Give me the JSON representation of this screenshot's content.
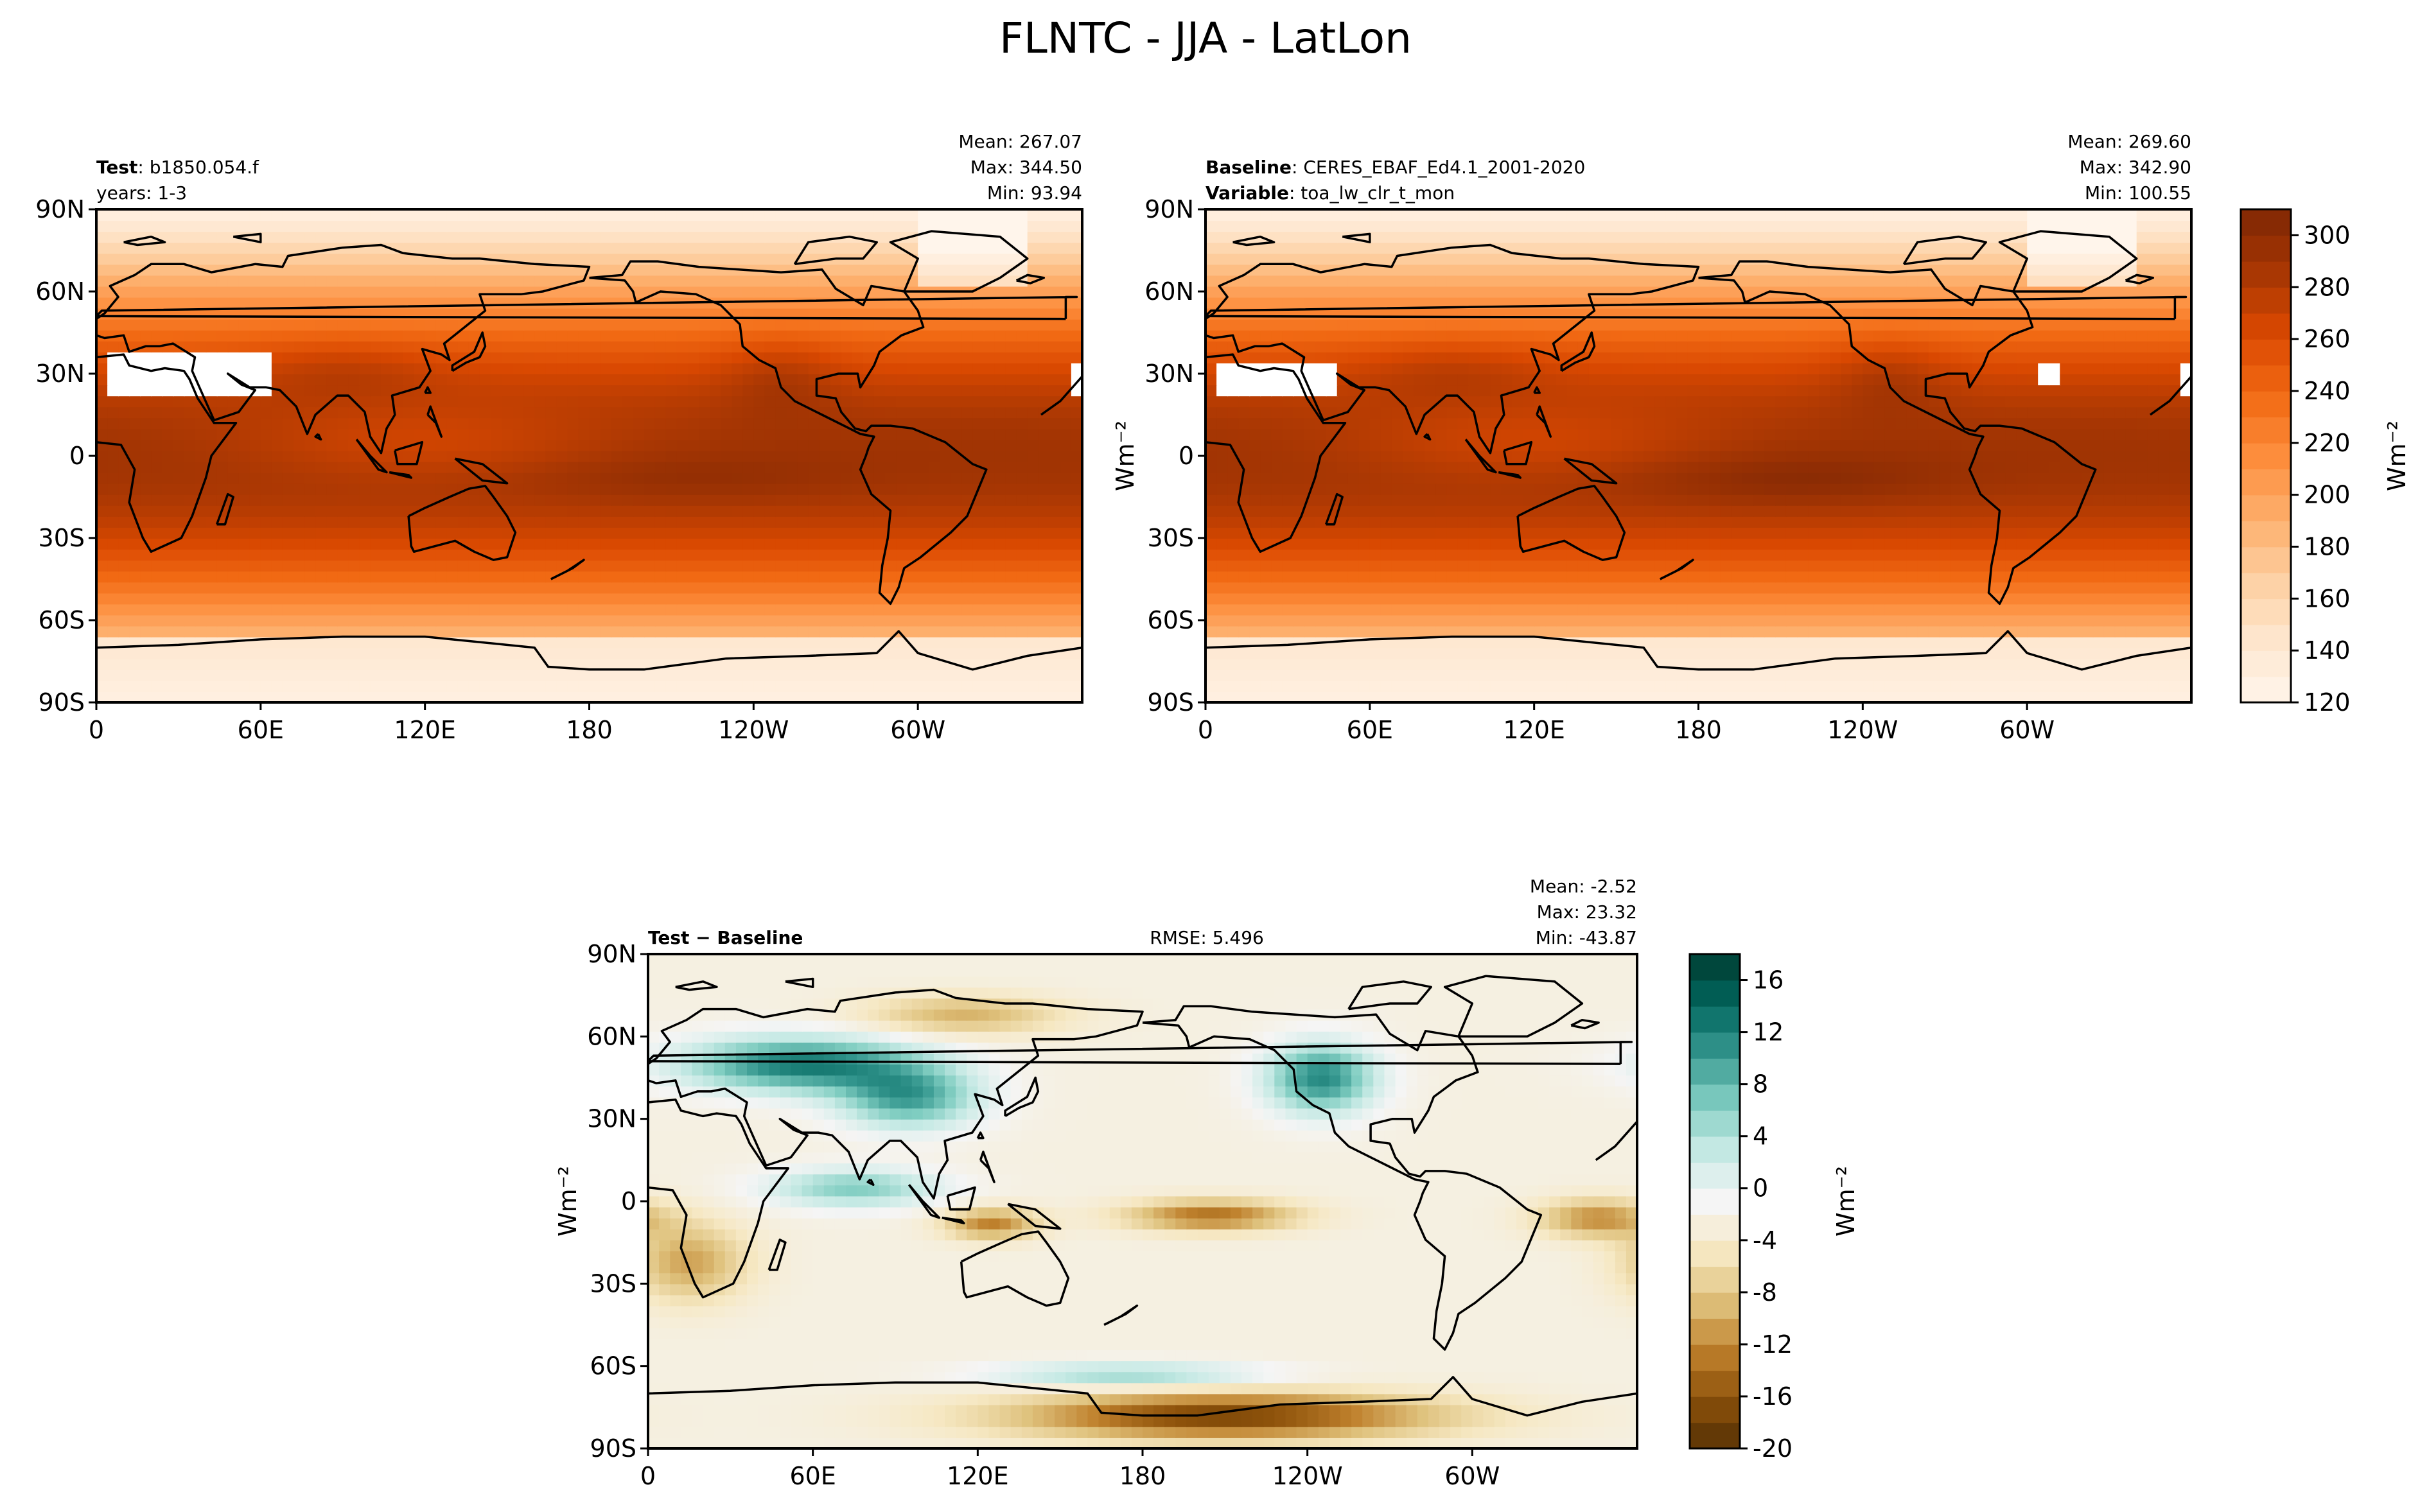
{
  "suptitle": "FLNTC - JJA - LatLon",
  "chart_data": [
    {
      "type": "heatmap",
      "panel": "test",
      "left_lines": [
        {
          "bold": "Test",
          "text": ": b1850.054.f"
        },
        {
          "bold": "",
          "text": "years: 1-3"
        }
      ],
      "stats": [
        "Mean: 267.07",
        "Max: 344.50",
        "Min: 93.94"
      ],
      "center_text": "",
      "x_ticks": [
        "0",
        "60E",
        "120E",
        "180",
        "120W",
        "60W"
      ],
      "y_ticks": [
        "90N",
        "60N",
        "30N",
        "0",
        "30S",
        "60S",
        "90S"
      ],
      "ylabel": "",
      "xlim": [
        0,
        360
      ],
      "ylim": [
        -90,
        90
      ],
      "units": "Wm⁻²",
      "colormap": "Oranges",
      "colorbar": {
        "range": [
          120,
          310
        ],
        "levels": [
          120,
          130,
          140,
          150,
          160,
          170,
          180,
          190,
          200,
          210,
          220,
          230,
          240,
          250,
          260,
          270,
          280,
          290,
          300,
          310
        ],
        "ticks": [
          "120",
          "140",
          "160",
          "180",
          "200",
          "220",
          "240",
          "260",
          "280",
          "300"
        ]
      }
    },
    {
      "type": "heatmap",
      "panel": "baseline",
      "left_lines": [
        {
          "bold": "Baseline",
          "text": ": CERES_EBAF_Ed4.1_2001-2020"
        },
        {
          "bold": "Variable",
          "text": ": toa_lw_clr_t_mon"
        }
      ],
      "stats": [
        "Mean: 269.60",
        "Max: 342.90",
        "Min: 100.55"
      ],
      "center_text": "",
      "x_ticks": [
        "0",
        "60E",
        "120E",
        "180",
        "120W",
        "60W"
      ],
      "y_ticks": [
        "90N",
        "60N",
        "30N",
        "0",
        "30S",
        "60S",
        "90S"
      ],
      "ylabel": "Wm⁻²",
      "xlim": [
        0,
        360
      ],
      "ylim": [
        -90,
        90
      ],
      "units": "Wm⁻²",
      "colormap": "Oranges"
    },
    {
      "type": "heatmap",
      "panel": "difference",
      "left_lines": [
        {
          "bold": "Test − Baseline",
          "text": ""
        }
      ],
      "stats": [
        "Mean: -2.52",
        "Max: 23.32",
        "Min: -43.87"
      ],
      "center_text": "RMSE: 5.496",
      "x_ticks": [
        "0",
        "60E",
        "120E",
        "180",
        "120W",
        "60W"
      ],
      "y_ticks": [
        "90N",
        "60N",
        "30N",
        "0",
        "30S",
        "60S",
        "90S"
      ],
      "ylabel": "Wm⁻²",
      "xlim": [
        0,
        360
      ],
      "ylim": [
        -90,
        90
      ],
      "units": "Wm⁻²",
      "colormap": "BrBG",
      "colorbar": {
        "range": [
          -20,
          18
        ],
        "levels": [
          -20,
          -18,
          -16,
          -14,
          -12,
          -10,
          -8,
          -6,
          -4,
          -2,
          0,
          2,
          4,
          6,
          8,
          10,
          12,
          14,
          16,
          18
        ],
        "ticks": [
          "-20",
          "-16",
          "-12",
          "-8",
          "-4",
          "0",
          "4",
          "8",
          "12",
          "16"
        ]
      }
    }
  ],
  "colors": {
    "oranges": [
      "#fff5eb",
      "#fee6ce",
      "#fdd0a2",
      "#fdae6b",
      "#fd8d3c",
      "#f16913",
      "#d94801",
      "#a63603",
      "#7f2704"
    ],
    "brbg": [
      "#543005",
      "#8c510a",
      "#bf812d",
      "#dfc27d",
      "#f6e8c3",
      "#f5f5f5",
      "#c7eae5",
      "#80cdc1",
      "#35978f",
      "#01665e",
      "#003c30"
    ],
    "coast": "#000000",
    "missing": "#ffffff"
  }
}
